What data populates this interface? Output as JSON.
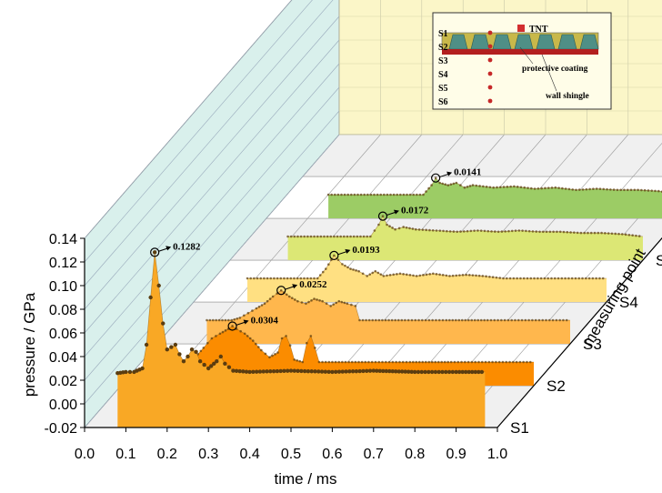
{
  "chart_data": {
    "type": "area",
    "xlabel": "time / ms",
    "ylabel": "pressure / GPa",
    "zlabel": "measuring point",
    "xlim": [
      0.0,
      1.0
    ],
    "ylim": [
      -0.02,
      0.14
    ],
    "x_ticks": [
      "0.0",
      "0.1",
      "0.2",
      "0.3",
      "0.4",
      "0.5",
      "0.6",
      "0.7",
      "0.8",
      "0.9",
      "1.0"
    ],
    "y_ticks": [
      "-0.02",
      "0.00",
      "0.02",
      "0.04",
      "0.06",
      "0.08",
      "0.10",
      "0.12",
      "0.14"
    ],
    "grid": true,
    "series": [
      {
        "name": "S1",
        "color": "#f9a825",
        "peak_label": "0.1282",
        "peak": [
          0.17,
          0.1282
        ],
        "points": [
          [
            0.08,
            0.026
          ],
          [
            0.1,
            0.027
          ],
          [
            0.12,
            0.027
          ],
          [
            0.14,
            0.03
          ],
          [
            0.15,
            0.05
          ],
          [
            0.16,
            0.09
          ],
          [
            0.17,
            0.1282
          ],
          [
            0.18,
            0.1
          ],
          [
            0.19,
            0.068
          ],
          [
            0.2,
            0.046
          ],
          [
            0.21,
            0.048
          ],
          [
            0.22,
            0.05
          ],
          [
            0.23,
            0.042
          ],
          [
            0.24,
            0.036
          ],
          [
            0.25,
            0.04
          ],
          [
            0.26,
            0.046
          ],
          [
            0.27,
            0.044
          ],
          [
            0.28,
            0.036
          ],
          [
            0.3,
            0.03
          ],
          [
            0.32,
            0.036
          ],
          [
            0.33,
            0.04
          ],
          [
            0.34,
            0.034
          ],
          [
            0.36,
            0.028
          ],
          [
            0.4,
            0.027
          ],
          [
            0.5,
            0.028
          ],
          [
            0.6,
            0.027
          ],
          [
            0.7,
            0.028
          ],
          [
            0.8,
            0.027
          ],
          [
            0.9,
            0.027
          ],
          [
            0.97,
            0.027
          ]
        ]
      },
      {
        "name": "S2",
        "color": "#fb8c00",
        "peak_label": "0.0304",
        "peak": [
          0.27,
          0.0304
        ],
        "points": [
          [
            0.12,
            0.0
          ],
          [
            0.16,
            0.0
          ],
          [
            0.18,
            0.004
          ],
          [
            0.2,
            0.012
          ],
          [
            0.22,
            0.02
          ],
          [
            0.24,
            0.024
          ],
          [
            0.26,
            0.028
          ],
          [
            0.27,
            0.0304
          ],
          [
            0.28,
            0.028
          ],
          [
            0.3,
            0.024
          ],
          [
            0.32,
            0.018
          ],
          [
            0.34,
            0.01
          ],
          [
            0.36,
            0.004
          ],
          [
            0.38,
            0.008
          ],
          [
            0.39,
            0.02
          ],
          [
            0.4,
            0.022
          ],
          [
            0.41,
            0.014
          ],
          [
            0.42,
            0.002
          ],
          [
            0.44,
            0.0
          ],
          [
            0.45,
            0.016
          ],
          [
            0.46,
            0.022
          ],
          [
            0.47,
            0.012
          ],
          [
            0.48,
            0.0
          ],
          [
            0.6,
            0.0
          ],
          [
            0.7,
            0.0
          ],
          [
            0.8,
            0.0
          ],
          [
            0.9,
            0.0
          ],
          [
            1.0,
            0.0
          ]
        ]
      },
      {
        "name": "S3",
        "color": "#ffb74d",
        "peak_label": "0.0252",
        "peak": [
          0.3,
          0.0252
        ],
        "points": [
          [
            0.12,
            0.0
          ],
          [
            0.18,
            0.0
          ],
          [
            0.2,
            0.002
          ],
          [
            0.22,
            0.006
          ],
          [
            0.24,
            0.01
          ],
          [
            0.26,
            0.014
          ],
          [
            0.28,
            0.02
          ],
          [
            0.3,
            0.0252
          ],
          [
            0.32,
            0.02
          ],
          [
            0.34,
            0.016
          ],
          [
            0.36,
            0.014
          ],
          [
            0.38,
            0.018
          ],
          [
            0.4,
            0.016
          ],
          [
            0.42,
            0.012
          ],
          [
            0.44,
            0.016
          ],
          [
            0.46,
            0.014
          ],
          [
            0.48,
            0.012
          ],
          [
            0.49,
            0.0
          ],
          [
            0.6,
            0.0
          ],
          [
            0.7,
            0.0
          ],
          [
            0.8,
            0.0
          ],
          [
            0.9,
            0.0
          ],
          [
            1.0,
            0.0
          ]
        ]
      },
      {
        "name": "S4",
        "color": "#ffe082",
        "peak_label": "0.0193",
        "peak": [
          0.34,
          0.0193
        ],
        "points": [
          [
            0.13,
            0.0
          ],
          [
            0.3,
            0.0
          ],
          [
            0.32,
            0.008
          ],
          [
            0.34,
            0.0193
          ],
          [
            0.36,
            0.012
          ],
          [
            0.38,
            0.008
          ],
          [
            0.4,
            0.006
          ],
          [
            0.42,
            0.002
          ],
          [
            0.44,
            0.006
          ],
          [
            0.46,
            0.002
          ],
          [
            0.5,
            0.004
          ],
          [
            0.54,
            0.002
          ],
          [
            0.58,
            0.004
          ],
          [
            0.62,
            0.002
          ],
          [
            0.66,
            0.003
          ],
          [
            0.7,
            0.002
          ],
          [
            0.75,
            0.0
          ],
          [
            0.85,
            0.0
          ],
          [
            0.95,
            0.0
          ],
          [
            1.0,
            0.0
          ]
        ]
      },
      {
        "name": "S5",
        "color": "#dce775",
        "peak_label": "0.0172",
        "peak": [
          0.37,
          0.0172
        ],
        "points": [
          [
            0.14,
            0.0
          ],
          [
            0.34,
            0.0
          ],
          [
            0.36,
            0.01
          ],
          [
            0.37,
            0.0172
          ],
          [
            0.38,
            0.01
          ],
          [
            0.4,
            0.006
          ],
          [
            0.42,
            0.008
          ],
          [
            0.45,
            0.006
          ],
          [
            0.5,
            0.005
          ],
          [
            0.55,
            0.004
          ],
          [
            0.6,
            0.005
          ],
          [
            0.65,
            0.004
          ],
          [
            0.7,
            0.005
          ],
          [
            0.75,
            0.004
          ],
          [
            0.8,
            0.004
          ],
          [
            0.85,
            0.003
          ],
          [
            0.9,
            0.003
          ],
          [
            0.95,
            0.002
          ],
          [
            1.0,
            0.0
          ]
        ]
      },
      {
        "name": "S6",
        "color": "#9ccc65",
        "peak_label": "0.0141",
        "peak": [
          0.41,
          0.0141
        ],
        "points": [
          [
            0.15,
            0.0
          ],
          [
            0.38,
            0.0
          ],
          [
            0.4,
            0.008
          ],
          [
            0.41,
            0.0141
          ],
          [
            0.42,
            0.01
          ],
          [
            0.44,
            0.008
          ],
          [
            0.46,
            0.01
          ],
          [
            0.48,
            0.006
          ],
          [
            0.5,
            0.008
          ],
          [
            0.55,
            0.006
          ],
          [
            0.6,
            0.007
          ],
          [
            0.65,
            0.005
          ],
          [
            0.7,
            0.006
          ],
          [
            0.75,
            0.004
          ],
          [
            0.8,
            0.005
          ],
          [
            0.85,
            0.004
          ],
          [
            0.9,
            0.004
          ],
          [
            0.95,
            0.003
          ],
          [
            1.0,
            0.0
          ]
        ]
      }
    ],
    "inset": {
      "sensor_labels": [
        "S1",
        "S2",
        "S3",
        "S4",
        "S5",
        "S6"
      ],
      "labels": {
        "tnt": "TNT",
        "coating": "protective coating",
        "wall": "wall shingle"
      }
    }
  },
  "colors": {
    "left_wall": "#d9f0ec",
    "back_wall": "#fbf6c8",
    "floor_a": "#f0f0f0",
    "floor_b": "#ffffff",
    "dots": "#5b3d10"
  }
}
